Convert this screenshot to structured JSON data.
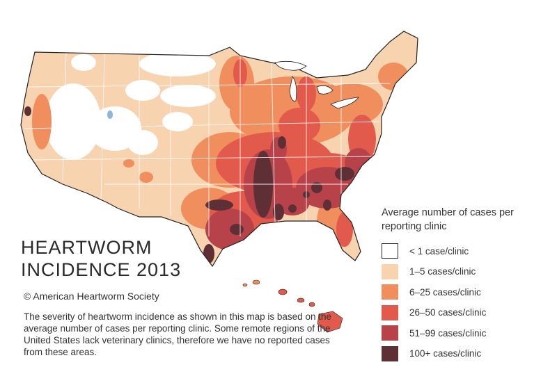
{
  "title": {
    "line1": "HEARTWORM",
    "line2": "INCIDENCE 2013"
  },
  "copyright": "© American Heartworm Society",
  "description": "The severity of heartworm incidence as shown in this map is based on the average number of cases per reporting clinic. Some remote regions of the United States lack veterinary clinics, therefore we have no reported cases from these areas.",
  "legend": {
    "title": "Average number of cases per reporting clinic",
    "items": [
      {
        "label": "< 1 case/clinic",
        "color": "#ffffff"
      },
      {
        "label": "1–5 cases/clinic",
        "color": "#f8d3b0"
      },
      {
        "label": "6–25 cases/clinic",
        "color": "#f08e5e"
      },
      {
        "label": "26–50 cases/clinic",
        "color": "#e25a4c"
      },
      {
        "label": "51–99 cases/clinic",
        "color": "#b8424a"
      },
      {
        "label": "100+ cases/clinic",
        "color": "#5e3035"
      }
    ]
  },
  "colors": {
    "border": "#222222",
    "state_lines": "#ffffff",
    "lake": "#8fb5d8"
  }
}
